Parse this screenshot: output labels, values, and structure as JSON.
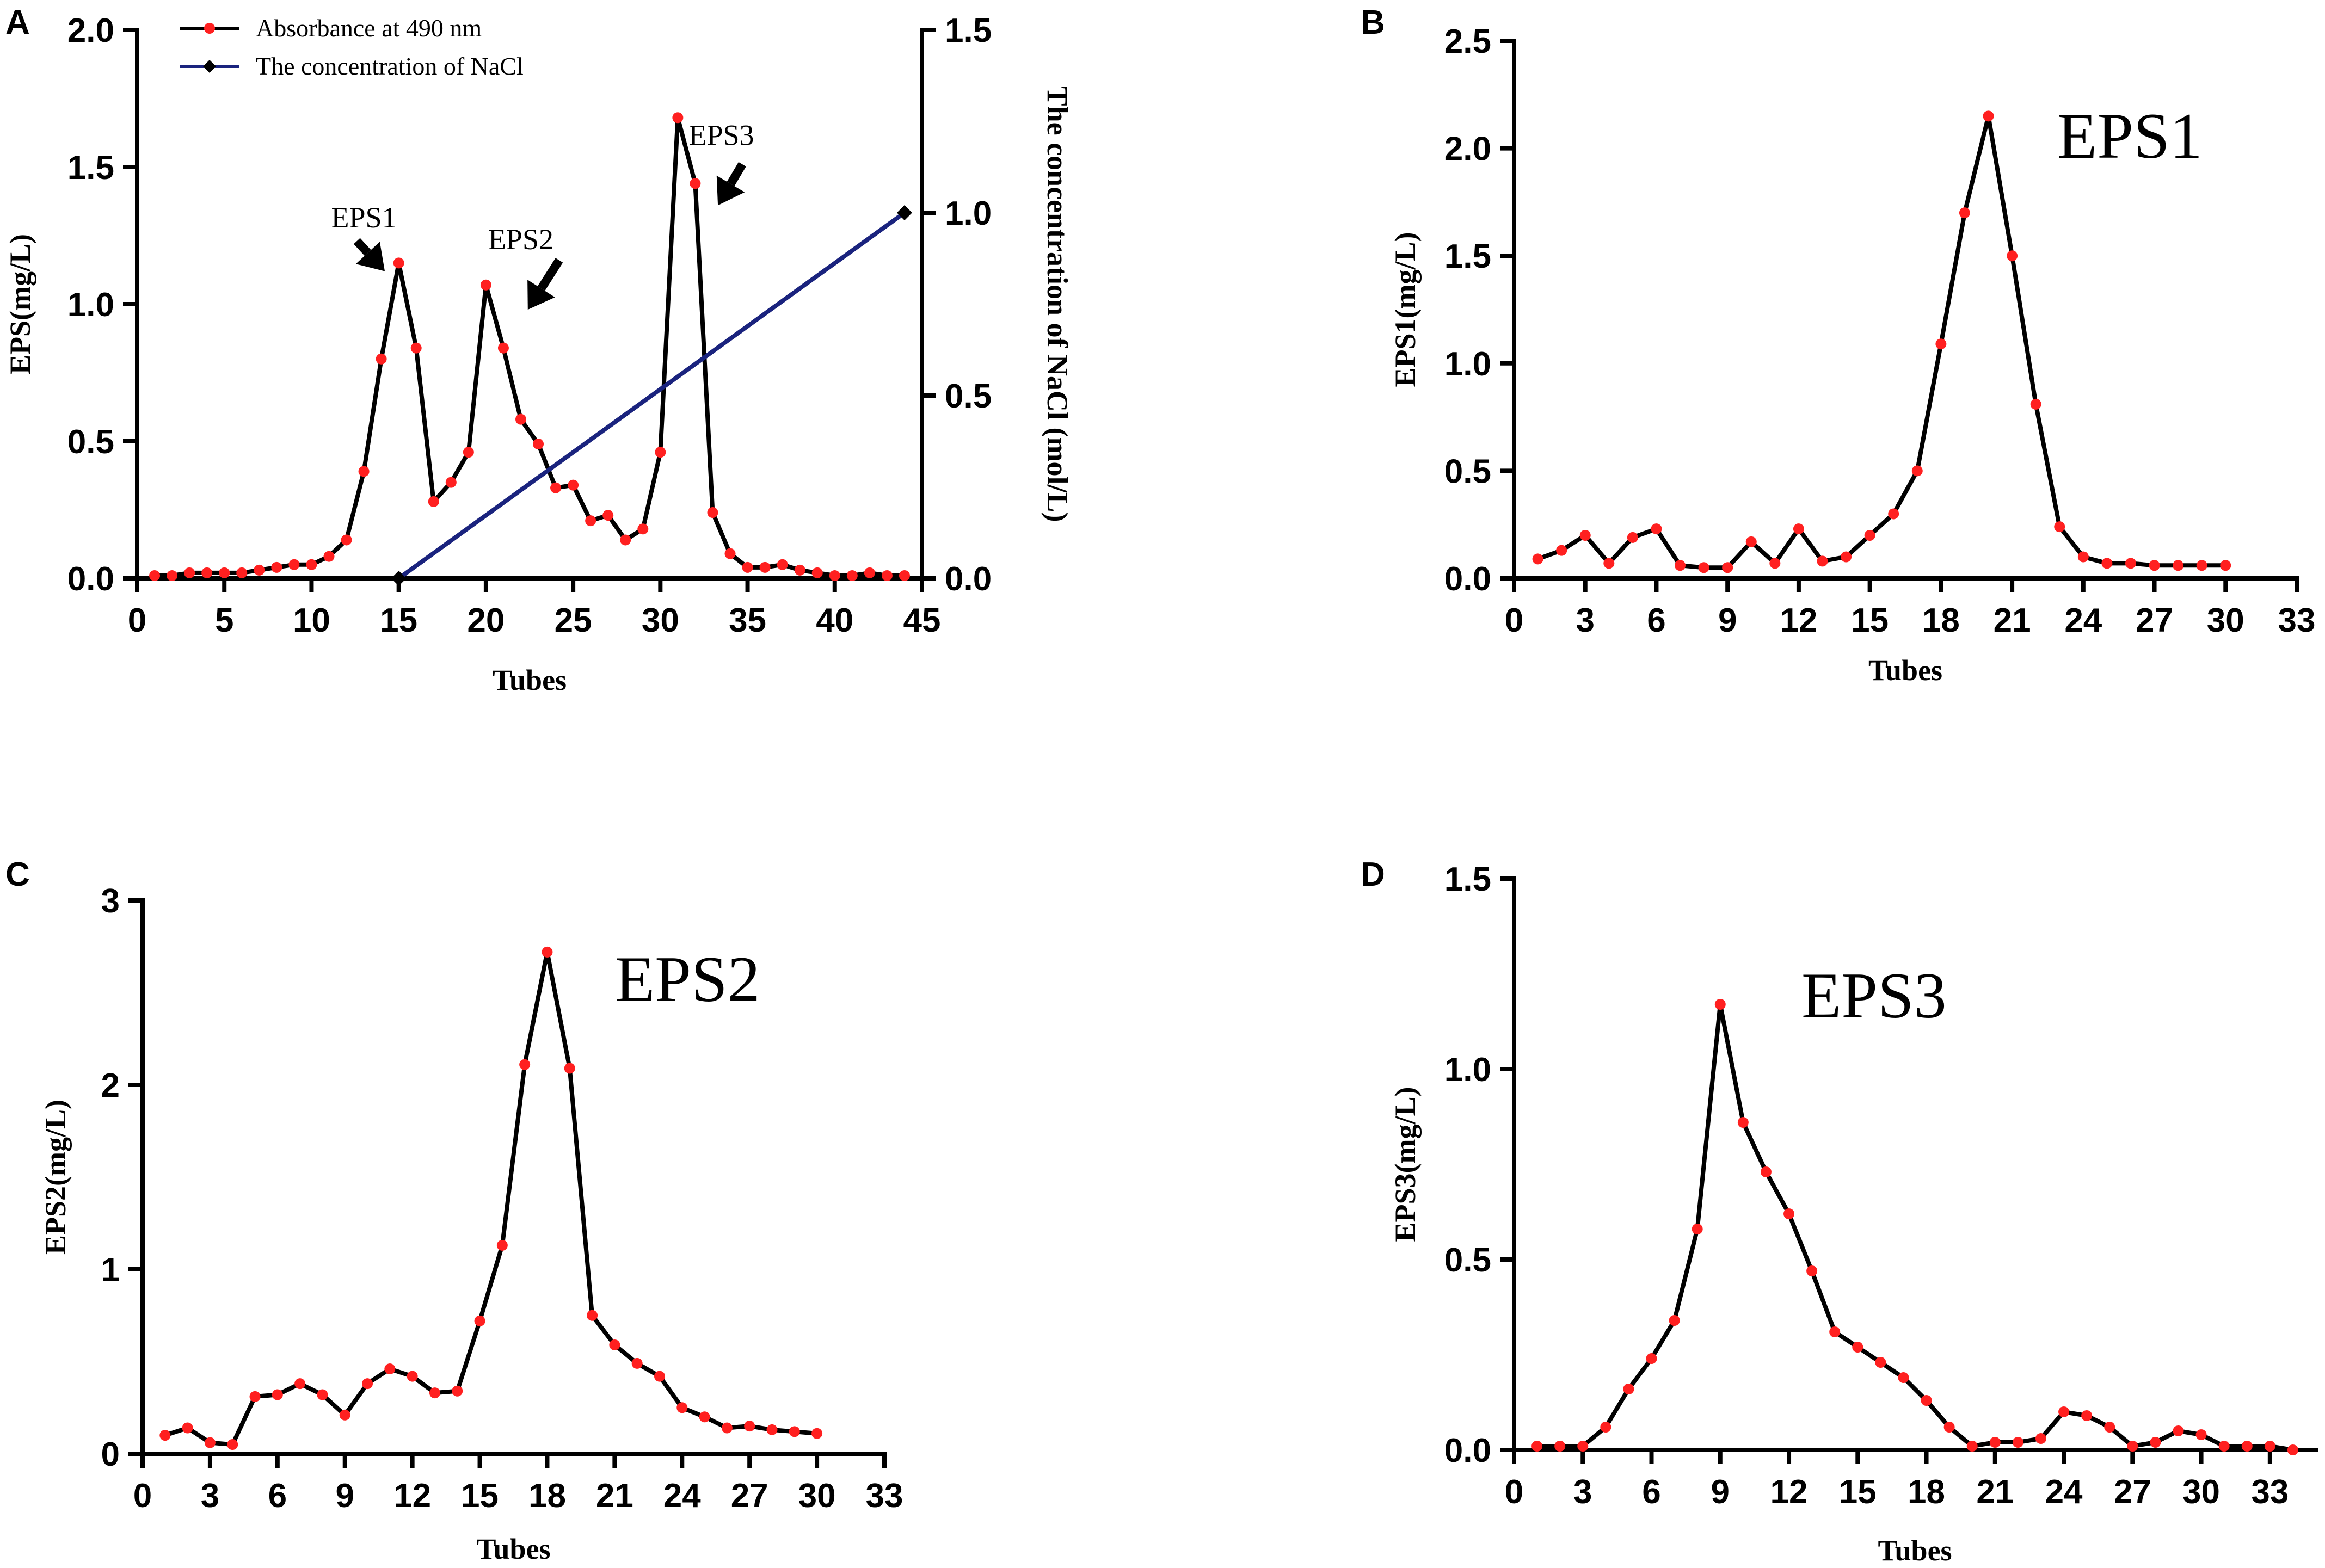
{
  "chart_data": [
    {
      "id": "A",
      "panel_letter": "A",
      "type": "line",
      "xlabel": "Tubes",
      "ylabel": "EPS(mg/L)",
      "y2label": "The concentration of NaCl (mol/L)",
      "xlim": [
        0,
        45
      ],
      "ylim": [
        0,
        2.0
      ],
      "y2lim": [
        0,
        1.5
      ],
      "xticks": [
        0,
        5,
        10,
        15,
        20,
        25,
        30,
        35,
        40,
        45
      ],
      "xtick_labels": [
        "0",
        "5",
        "10",
        "15",
        "20",
        "25",
        "30",
        "35",
        "40",
        "45"
      ],
      "yticks": [
        0,
        0.5,
        1.0,
        1.5,
        2.0
      ],
      "ytick_labels": [
        "0.0",
        "0.5",
        "1.0",
        "1.5",
        "2.0"
      ],
      "y2ticks": [
        0,
        0.5,
        1.0,
        1.5
      ],
      "y2tick_labels": [
        "0.0",
        "0.5",
        "1.0",
        "1.5"
      ],
      "legend": [
        "Absorbance at 490 nm",
        "The concentration of NaCl"
      ],
      "series": [
        {
          "name": "Absorbance at 490 nm",
          "axis": "left",
          "x": [
            1,
            2,
            3,
            4,
            5,
            6,
            7,
            8,
            9,
            10,
            11,
            12,
            13,
            14,
            15,
            16,
            17,
            18,
            19,
            20,
            21,
            22,
            23,
            24,
            25,
            26,
            27,
            28,
            29,
            30,
            31,
            32,
            33,
            34,
            35,
            36,
            37,
            38,
            39,
            40,
            41,
            42,
            43,
            44
          ],
          "values": [
            0.01,
            0.01,
            0.02,
            0.02,
            0.02,
            0.02,
            0.03,
            0.04,
            0.05,
            0.05,
            0.08,
            0.14,
            0.39,
            0.8,
            1.15,
            0.84,
            0.28,
            0.35,
            0.46,
            1.07,
            0.84,
            0.58,
            0.49,
            0.33,
            0.34,
            0.21,
            0.23,
            0.14,
            0.18,
            0.46,
            1.68,
            1.44,
            0.24,
            0.09,
            0.04,
            0.04,
            0.05,
            0.03,
            0.02,
            0.01,
            0.01,
            0.02,
            0.01,
            0.01
          ]
        },
        {
          "name": "The concentration of NaCl",
          "axis": "right",
          "x": [
            15,
            44
          ],
          "values": [
            0,
            1.0
          ]
        }
      ],
      "annotations": [
        {
          "text": "EPS1",
          "x": 13,
          "y": 1.28,
          "arrow_from": [
            12.6,
            1.23
          ],
          "arrow_to": [
            14.2,
            1.12
          ]
        },
        {
          "text": "EPS2",
          "x": 22,
          "y": 1.2,
          "arrow_from": [
            24.2,
            1.16
          ],
          "arrow_to": [
            22.4,
            0.98
          ]
        },
        {
          "text": "EPS3",
          "x": 33.5,
          "y": 1.58,
          "arrow_from": [
            34.7,
            1.51
          ],
          "arrow_to": [
            33.3,
            1.36
          ]
        }
      ]
    },
    {
      "id": "B",
      "panel_letter": "B",
      "type": "line",
      "label": "EPS1",
      "xlabel": "Tubes",
      "ylabel": "EPS1(mg/L)",
      "xlim": [
        0,
        33
      ],
      "ylim": [
        0,
        2.5
      ],
      "xticks": [
        0,
        3,
        6,
        9,
        12,
        15,
        18,
        21,
        24,
        27,
        30,
        33
      ],
      "xtick_labels": [
        "0",
        "3",
        "6",
        "9",
        "12",
        "15",
        "18",
        "21",
        "24",
        "27",
        "30",
        "33"
      ],
      "yticks": [
        0,
        0.5,
        1.0,
        1.5,
        2.0,
        2.5
      ],
      "ytick_labels": [
        "0.0",
        "0.5",
        "1.0",
        "1.5",
        "2.0",
        "2.5"
      ],
      "series": [
        {
          "name": "EPS1",
          "x": [
            1,
            2,
            3,
            4,
            5,
            6,
            7,
            8,
            9,
            10,
            11,
            12,
            13,
            14,
            15,
            16,
            17,
            18,
            19,
            20,
            21,
            22,
            23,
            24,
            25,
            26,
            27,
            28,
            29,
            30
          ],
          "values": [
            0.09,
            0.13,
            0.2,
            0.07,
            0.19,
            0.23,
            0.06,
            0.05,
            0.05,
            0.17,
            0.07,
            0.23,
            0.08,
            0.1,
            0.2,
            0.3,
            0.5,
            1.09,
            1.7,
            2.15,
            1.5,
            0.81,
            0.24,
            0.1,
            0.07,
            0.07,
            0.06,
            0.06,
            0.06,
            0.06
          ]
        }
      ]
    },
    {
      "id": "C",
      "panel_letter": "C",
      "type": "line",
      "label": "EPS2",
      "xlabel": "Tubes",
      "ylabel": "EPS2(mg/L)",
      "xlim": [
        0,
        33
      ],
      "ylim": [
        0,
        3
      ],
      "xticks": [
        0,
        3,
        6,
        9,
        12,
        15,
        18,
        21,
        24,
        27,
        30,
        33
      ],
      "xtick_labels": [
        "0",
        "3",
        "6",
        "9",
        "12",
        "15",
        "18",
        "21",
        "24",
        "27",
        "30",
        "33"
      ],
      "yticks": [
        0,
        1,
        2,
        3
      ],
      "ytick_labels": [
        "0",
        "1",
        "2",
        "3"
      ],
      "series": [
        {
          "name": "EPS2",
          "x": [
            1,
            2,
            3,
            4,
            5,
            6,
            7,
            8,
            9,
            10,
            11,
            12,
            13,
            14,
            15,
            16,
            17,
            18,
            19,
            20,
            21,
            22,
            23,
            24,
            25,
            26,
            27,
            28,
            29,
            30
          ],
          "values": [
            0.1,
            0.14,
            0.06,
            0.05,
            0.31,
            0.32,
            0.38,
            0.32,
            0.21,
            0.38,
            0.46,
            0.42,
            0.33,
            0.34,
            0.72,
            1.13,
            2.11,
            2.72,
            2.09,
            0.75,
            0.59,
            0.49,
            0.42,
            0.25,
            0.2,
            0.14,
            0.15,
            0.13,
            0.12,
            0.11
          ]
        }
      ]
    },
    {
      "id": "D",
      "panel_letter": "D",
      "type": "line",
      "label": "EPS3",
      "xlabel": "Tubes",
      "ylabel": "EPS3(mg/L)",
      "xlim": [
        0,
        35
      ],
      "ylim": [
        0,
        1.5
      ],
      "xticks": [
        0,
        3,
        6,
        9,
        12,
        15,
        18,
        21,
        24,
        27,
        30,
        33
      ],
      "xtick_labels": [
        "0",
        "3",
        "6",
        "9",
        "12",
        "15",
        "18",
        "21",
        "24",
        "27",
        "30",
        "33"
      ],
      "yticks": [
        0,
        0.5,
        1.0,
        1.5
      ],
      "ytick_labels": [
        "0.0",
        "0.5",
        "1.0",
        "1.5"
      ],
      "series": [
        {
          "name": "EPS3",
          "x": [
            1,
            2,
            3,
            4,
            5,
            6,
            7,
            8,
            9,
            10,
            11,
            12,
            13,
            14,
            15,
            16,
            17,
            18,
            19,
            20,
            21,
            22,
            23,
            24,
            25,
            26,
            27,
            28,
            29,
            30,
            31,
            32,
            33,
            34
          ],
          "values": [
            0.01,
            0.01,
            0.01,
            0.06,
            0.16,
            0.24,
            0.34,
            0.58,
            1.17,
            0.86,
            0.73,
            0.62,
            0.47,
            0.31,
            0.27,
            0.23,
            0.19,
            0.13,
            0.06,
            0.01,
            0.02,
            0.02,
            0.03,
            0.1,
            0.09,
            0.06,
            0.01,
            0.02,
            0.05,
            0.04,
            0.01,
            0.01,
            0.01,
            0.0
          ]
        }
      ]
    }
  ]
}
